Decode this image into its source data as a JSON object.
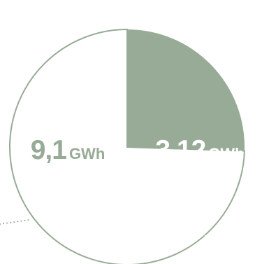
{
  "chart_data": {
    "type": "pie",
    "series": [
      {
        "values": [
          9.1,
          3.12
        ],
        "labels": [
          "9,1",
          "3,12"
        ],
        "unit": "GWh"
      }
    ],
    "colors": {
      "large_slice_fill": "#ffffff",
      "large_slice_stroke": "#97ab96",
      "small_slice_fill": "#97ab96",
      "large_label": "#97ab96",
      "small_label": "#ffffff",
      "leader_dots": "#97ab96",
      "inner_leader_dots": "#ffffff"
    }
  }
}
